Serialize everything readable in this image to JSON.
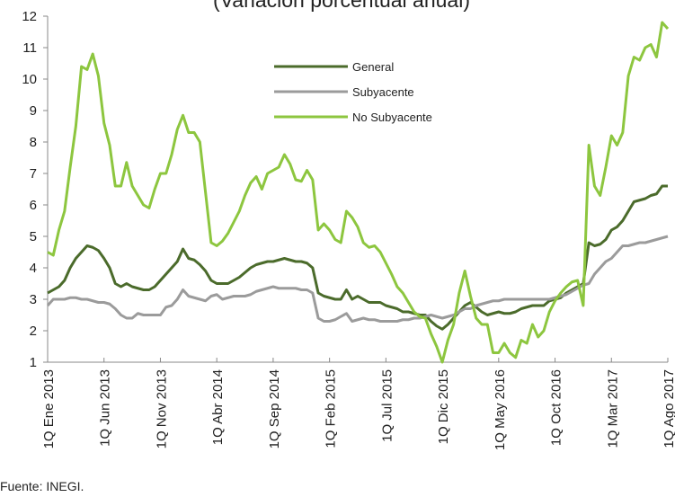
{
  "chart_data": {
    "type": "line",
    "title": "(Variación porcentual anual)",
    "source": "Fuente: INEGI.",
    "categories": [
      "1Q Ene 2013",
      null,
      null,
      null,
      null,
      null,
      null,
      null,
      null,
      null,
      "1Q Jun 2013",
      null,
      null,
      null,
      null,
      null,
      null,
      null,
      null,
      null,
      "1Q Nov 2013",
      null,
      null,
      null,
      null,
      null,
      null,
      null,
      null,
      null,
      "1Q Abr 2014",
      null,
      null,
      null,
      null,
      null,
      null,
      null,
      null,
      null,
      "1Q Sep 2014",
      null,
      null,
      null,
      null,
      null,
      null,
      null,
      null,
      null,
      "1Q Feb 2015",
      null,
      null,
      null,
      null,
      null,
      null,
      null,
      null,
      null,
      "1Q Jul 2015",
      null,
      null,
      null,
      null,
      null,
      null,
      null,
      null,
      null,
      "1Q Dic 2015",
      null,
      null,
      null,
      null,
      null,
      null,
      null,
      null,
      null,
      "1Q May 2016",
      null,
      null,
      null,
      null,
      null,
      null,
      null,
      null,
      null,
      "1Q Oct 2016",
      null,
      null,
      null,
      null,
      null,
      null,
      null,
      null,
      null,
      "1Q Mar 2017",
      null,
      null,
      null,
      null,
      null,
      null,
      null,
      null,
      null,
      "1Q Ago 2017"
    ],
    "series": [
      {
        "name": "General",
        "color": "#4b6b2b",
        "values": [
          3.2,
          3.3,
          3.4,
          3.6,
          4.0,
          4.3,
          4.5,
          4.7,
          4.65,
          4.55,
          4.3,
          4.0,
          3.5,
          3.4,
          3.5,
          3.4,
          3.35,
          3.3,
          3.3,
          3.4,
          3.6,
          3.8,
          4.0,
          4.2,
          4.6,
          4.3,
          4.25,
          4.1,
          3.9,
          3.6,
          3.5,
          3.5,
          3.5,
          3.6,
          3.7,
          3.85,
          4.0,
          4.1,
          4.15,
          4.2,
          4.2,
          4.25,
          4.3,
          4.25,
          4.2,
          4.2,
          4.15,
          4.0,
          3.2,
          3.1,
          3.05,
          3.0,
          3.0,
          3.3,
          3.0,
          3.1,
          3.0,
          2.9,
          2.9,
          2.9,
          2.8,
          2.75,
          2.7,
          2.6,
          2.6,
          2.55,
          2.5,
          2.5,
          2.3,
          2.15,
          2.05,
          2.2,
          2.4,
          2.6,
          2.8,
          2.9,
          2.75,
          2.6,
          2.5,
          2.55,
          2.6,
          2.55,
          2.55,
          2.6,
          2.7,
          2.75,
          2.8,
          2.8,
          2.8,
          2.95,
          3.0,
          3.05,
          3.2,
          3.3,
          3.4,
          3.5,
          4.8,
          4.7,
          4.75,
          4.9,
          5.2,
          5.3,
          5.5,
          5.8,
          6.1,
          6.15,
          6.2,
          6.3,
          6.35,
          6.6,
          6.6
        ]
      },
      {
        "name": "Subyacente",
        "color": "#9b9b9b",
        "values": [
          2.8,
          3.0,
          3.0,
          3.0,
          3.05,
          3.05,
          3.0,
          3.0,
          2.95,
          2.9,
          2.9,
          2.85,
          2.7,
          2.5,
          2.4,
          2.4,
          2.55,
          2.5,
          2.5,
          2.5,
          2.5,
          2.75,
          2.8,
          3.0,
          3.3,
          3.1,
          3.05,
          3.0,
          2.95,
          3.1,
          3.15,
          3.0,
          3.05,
          3.1,
          3.1,
          3.1,
          3.15,
          3.25,
          3.3,
          3.35,
          3.4,
          3.35,
          3.35,
          3.35,
          3.35,
          3.3,
          3.3,
          3.2,
          2.4,
          2.3,
          2.3,
          2.35,
          2.45,
          2.55,
          2.3,
          2.35,
          2.4,
          2.35,
          2.35,
          2.3,
          2.3,
          2.3,
          2.3,
          2.35,
          2.35,
          2.4,
          2.4,
          2.45,
          2.5,
          2.45,
          2.4,
          2.45,
          2.5,
          2.6,
          2.7,
          2.7,
          2.8,
          2.85,
          2.9,
          2.95,
          2.95,
          3.0,
          3.0,
          3.0,
          3.0,
          3.0,
          3.0,
          3.0,
          3.0,
          3.0,
          3.05,
          3.1,
          3.15,
          3.25,
          3.35,
          3.45,
          3.5,
          3.8,
          4.0,
          4.2,
          4.3,
          4.5,
          4.7,
          4.7,
          4.75,
          4.8,
          4.8,
          4.85,
          4.9,
          4.95,
          5.0
        ]
      },
      {
        "name": "No Subyacente",
        "color": "#8dc63f",
        "values": [
          4.5,
          4.4,
          5.2,
          5.8,
          7.2,
          8.5,
          10.4,
          10.3,
          10.8,
          10.1,
          8.6,
          7.9,
          6.6,
          6.6,
          7.35,
          6.6,
          6.3,
          6.0,
          5.9,
          6.5,
          7.0,
          7.0,
          7.6,
          8.4,
          8.85,
          8.3,
          8.3,
          8.0,
          6.4,
          4.8,
          4.7,
          4.85,
          5.1,
          5.45,
          5.8,
          6.3,
          6.7,
          6.9,
          6.5,
          7.0,
          7.1,
          7.2,
          7.6,
          7.3,
          6.8,
          6.75,
          7.1,
          6.8,
          5.2,
          5.4,
          5.2,
          4.9,
          4.8,
          5.8,
          5.6,
          5.3,
          4.8,
          4.65,
          4.7,
          4.5,
          4.15,
          3.8,
          3.4,
          3.2,
          2.9,
          2.6,
          2.45,
          2.4,
          1.9,
          1.5,
          1.0,
          1.7,
          2.2,
          3.2,
          3.9,
          3.1,
          2.4,
          2.2,
          2.2,
          1.3,
          1.3,
          1.6,
          1.3,
          1.15,
          1.7,
          1.6,
          2.2,
          1.8,
          2.0,
          2.6,
          2.95,
          3.2,
          3.4,
          3.55,
          3.6,
          2.8,
          7.9,
          6.6,
          6.3,
          7.2,
          8.2,
          7.9,
          8.3,
          10.1,
          10.7,
          10.6,
          11.0,
          11.1,
          10.7,
          11.8,
          11.6
        ]
      }
    ],
    "ylim": [
      1,
      12
    ],
    "yticks": [
      1,
      2,
      3,
      4,
      5,
      6,
      7,
      8,
      9,
      10,
      11,
      12
    ]
  }
}
